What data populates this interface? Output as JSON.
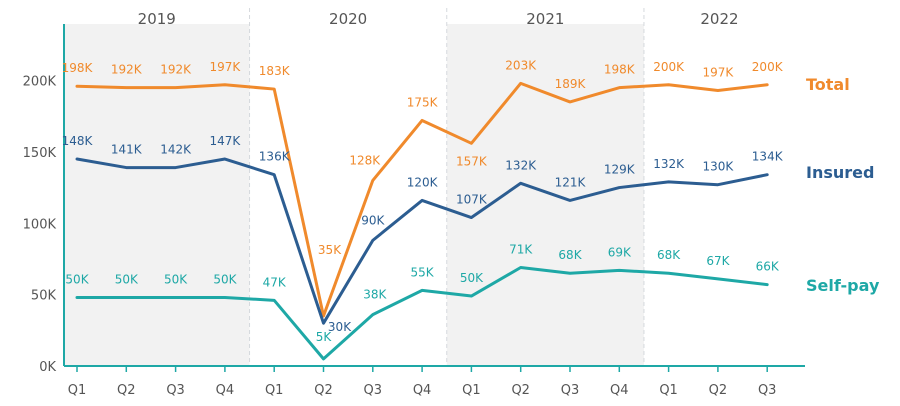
{
  "chart_data": {
    "type": "line",
    "years": [
      {
        "label": "2019",
        "start": 0,
        "end": 3,
        "shaded": true
      },
      {
        "label": "2020",
        "start": 4,
        "end": 7,
        "shaded": false
      },
      {
        "label": "2021",
        "start": 8,
        "end": 11,
        "shaded": true
      },
      {
        "label": "2022",
        "start": 12,
        "end": 14,
        "shaded": false
      }
    ],
    "categories": [
      "Q1",
      "Q2",
      "Q3",
      "Q4",
      "Q1",
      "Q2",
      "Q3",
      "Q4",
      "Q1",
      "Q2",
      "Q3",
      "Q4",
      "Q1",
      "Q2",
      "Q3"
    ],
    "y_ticks": [
      0,
      50,
      100,
      150,
      200
    ],
    "y_tick_labels": [
      "0K",
      "50K",
      "100K",
      "150K",
      "200K"
    ],
    "ylim": [
      0,
      240
    ],
    "series": [
      {
        "name": "Total",
        "color": "#f08a2c",
        "values": [
          198,
          192,
          192,
          197,
          183,
          35,
          128,
          175,
          157,
          203,
          189,
          198,
          200,
          197,
          200
        ],
        "plotted": [
          196,
          195,
          195,
          197,
          194,
          35,
          130,
          172,
          156,
          198,
          185,
          195,
          197,
          193,
          197
        ],
        "labels": [
          "198K",
          "192K",
          "192K",
          "197K",
          "183K",
          "35K",
          "128K",
          "175K",
          "157K",
          "203K",
          "189K",
          "198K",
          "200K",
          "197K",
          "200K"
        ]
      },
      {
        "name": "Insured",
        "color": "#2c5d91",
        "values": [
          148,
          141,
          142,
          147,
          136,
          30,
          90,
          120,
          107,
          132,
          121,
          129,
          132,
          130,
          134
        ],
        "plotted": [
          145,
          139,
          139,
          145,
          134,
          30,
          88,
          116,
          104,
          128,
          116,
          125,
          129,
          127,
          134
        ],
        "labels": [
          "148K",
          "141K",
          "142K",
          "147K",
          "136K",
          "30K",
          "90K",
          "120K",
          "107K",
          "132K",
          "121K",
          "129K",
          "132K",
          "130K",
          "134K"
        ]
      },
      {
        "name": "Self-pay",
        "color": "#1ea8a6",
        "values": [
          50,
          50,
          50,
          50,
          47,
          5,
          38,
          55,
          50,
          71,
          68,
          69,
          68,
          67,
          66
        ],
        "plotted": [
          48,
          48,
          48,
          48,
          46,
          5,
          36,
          53,
          49,
          69,
          65,
          67,
          65,
          61,
          57
        ],
        "labels": [
          "50K",
          "50K",
          "50K",
          "50K",
          "47K",
          "5K",
          "38K",
          "55K",
          "50K",
          "71K",
          "68K",
          "69K",
          "68K",
          "67K",
          "66K"
        ]
      }
    ],
    "title": "",
    "xlabel": "",
    "ylabel": ""
  }
}
